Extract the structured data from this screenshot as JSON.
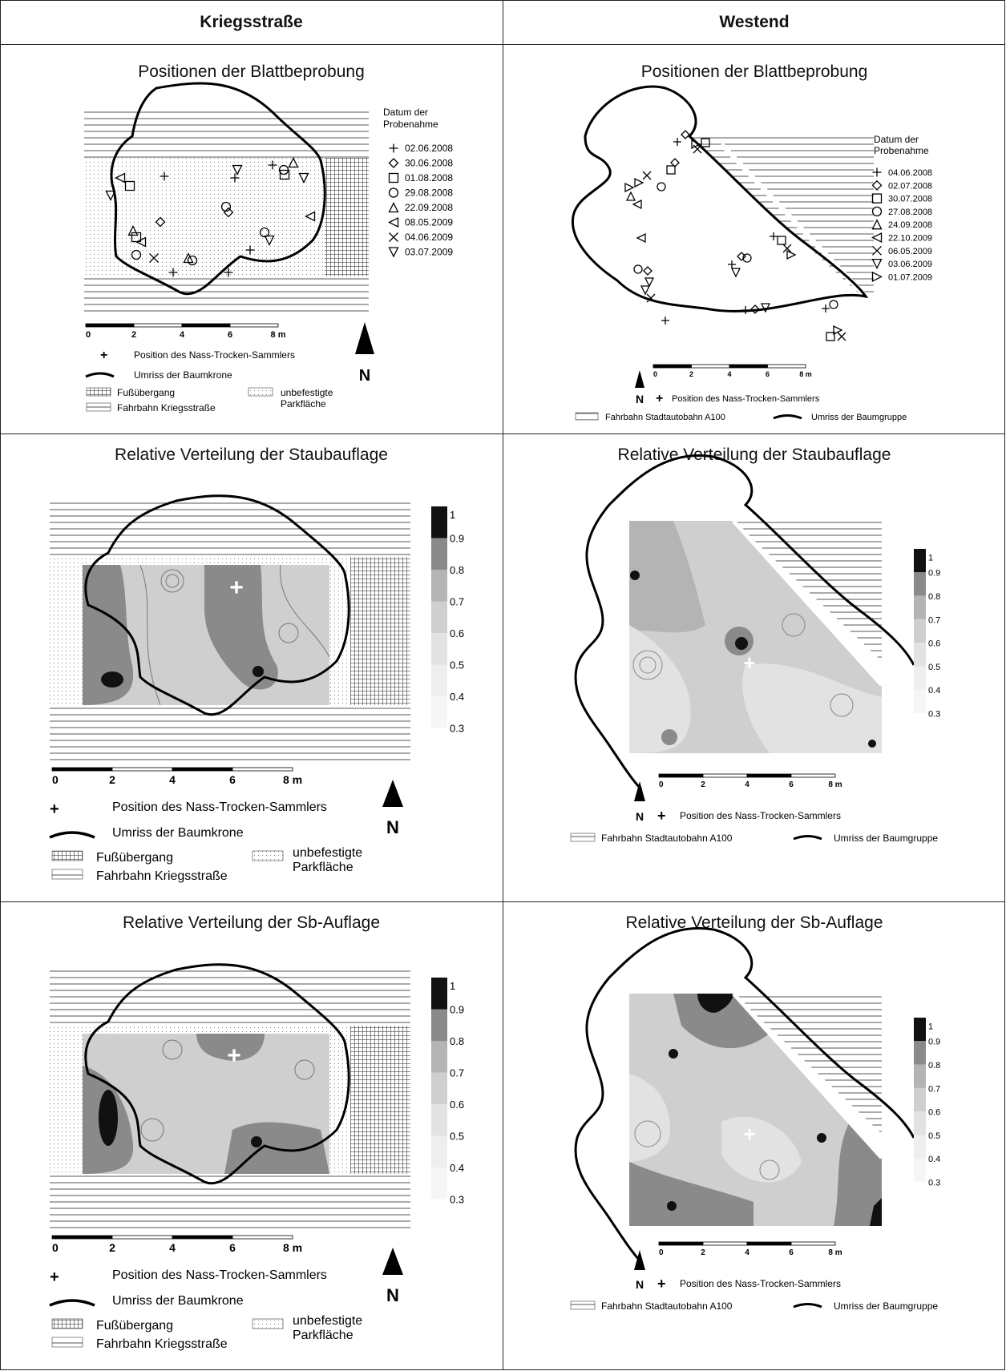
{
  "columns": {
    "left": "Kriegsstraße",
    "right": "Westend"
  },
  "titles": {
    "positions": "Positionen der Blattbeprobung",
    "dust": "Relative Verteilung der Staubauflage",
    "sb": "Relative Verteilung der Sb-Auflage"
  },
  "date_legend": {
    "title_line1": "Datum der",
    "title_line2": "Probenahme",
    "kriegsstrasse": [
      {
        "symbol": "plus",
        "date": "02.06.2008"
      },
      {
        "symbol": "diamond",
        "date": "30.06.2008"
      },
      {
        "symbol": "square",
        "date": "01.08.2008"
      },
      {
        "symbol": "circle",
        "date": "29.08.2008"
      },
      {
        "symbol": "triangle-up",
        "date": "22.09.2008"
      },
      {
        "symbol": "triangle-left",
        "date": "08.05.2009"
      },
      {
        "symbol": "cross",
        "date": "04.06.2009"
      },
      {
        "symbol": "triangle-down",
        "date": "03.07.2009"
      }
    ],
    "westend": [
      {
        "symbol": "plus",
        "date": "04.06.2008"
      },
      {
        "symbol": "diamond",
        "date": "02.07.2008"
      },
      {
        "symbol": "square",
        "date": "30.07.2008"
      },
      {
        "symbol": "circle",
        "date": "27.08.2008"
      },
      {
        "symbol": "triangle-up",
        "date": "24.09.2008"
      },
      {
        "symbol": "triangle-left",
        "date": "22.10.2009"
      },
      {
        "symbol": "cross",
        "date": "06.05.2009"
      },
      {
        "symbol": "triangle-down",
        "date": "03.06.2009"
      },
      {
        "symbol": "triangle-right",
        "date": "01.07.2009"
      }
    ]
  },
  "scale": {
    "ticks": [
      "0",
      "2",
      "4",
      "6",
      "8 m"
    ]
  },
  "north": "N",
  "legend": {
    "collector": "Position des Nass-Trocken-Sammlers",
    "crown": "Umriss der Baumkrone",
    "crossing": "Fußübergang",
    "parking_line1": "unbefestigte",
    "parking_line2": "Parkfläche",
    "road_kriegs": "Fahrbahn Kriegsstraße",
    "road_westend": "Fahrbahn Stadtautobahn A100",
    "tree_group": "Umriss der Baumgruppe"
  },
  "colorbar": {
    "labels": [
      "1",
      "0.9",
      "0.8",
      "0.7",
      "0.6",
      "0.5",
      "0.4",
      "0.3"
    ],
    "colors": [
      "#111111",
      "#8a8a8a",
      "#b4b4b4",
      "#cfcfcf",
      "#e2e2e2",
      "#eeeeee",
      "#f6f6f6"
    ]
  }
}
